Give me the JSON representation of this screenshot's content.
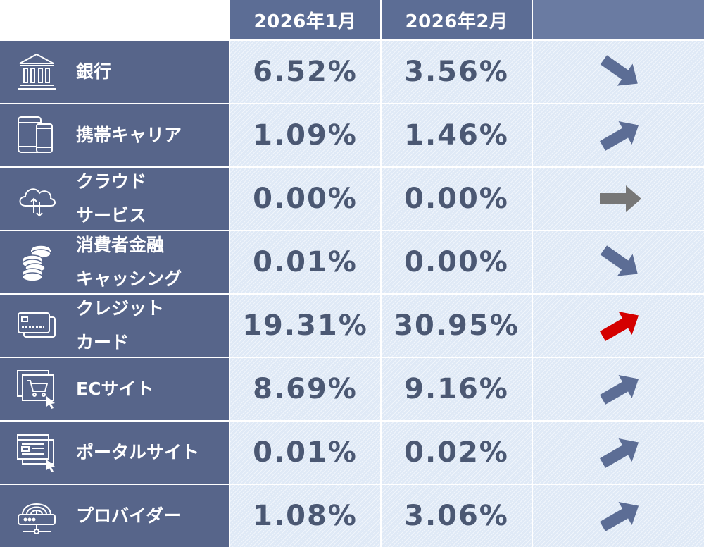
{
  "header": {
    "col1": "2026年1月",
    "col2": "2026年2月",
    "col3": ""
  },
  "colors": {
    "category_bg": "#57658a",
    "header_bg": "#5c6d95",
    "value_bg": "#dfe9f6",
    "value_text": "#4b5873",
    "trend_normal": "#5c6d95",
    "trend_flat": "#777777",
    "trend_highlight": "#d40000"
  },
  "rows": [
    {
      "icon": "bank-icon",
      "label_line1": "銀行",
      "label_line2": "",
      "jan": "6.52%",
      "feb": "3.56%",
      "trend": "down",
      "trend_color": "#5c6d95"
    },
    {
      "icon": "mobile-devices-icon",
      "label_line1": "携帯キャリア",
      "label_line2": "",
      "jan": "1.09%",
      "feb": "1.46%",
      "trend": "up",
      "trend_color": "#5c6d95"
    },
    {
      "icon": "cloud-sync-icon",
      "label_line1": "クラウド",
      "label_line2": "サービス",
      "jan": "0.00%",
      "feb": "0.00%",
      "trend": "flat",
      "trend_color": "#777777"
    },
    {
      "icon": "coin-stack-icon",
      "label_line1": "消費者金融",
      "label_line2": "キャッシング",
      "jan": "0.01%",
      "feb": "0.00%",
      "trend": "down",
      "trend_color": "#5c6d95"
    },
    {
      "icon": "credit-card-icon",
      "label_line1": "クレジット",
      "label_line2": "カード",
      "jan": "19.31%",
      "feb": "30.95%",
      "trend": "up",
      "trend_color": "#d40000"
    },
    {
      "icon": "shopping-cart-icon",
      "label_line1": "ECサイト",
      "label_line2": "",
      "jan": "8.69%",
      "feb": "9.16%",
      "trend": "up",
      "trend_color": "#5c6d95"
    },
    {
      "icon": "portal-site-icon",
      "label_line1": "ポータルサイト",
      "label_line2": "",
      "jan": "0.01%",
      "feb": "0.02%",
      "trend": "up",
      "trend_color": "#5c6d95"
    },
    {
      "icon": "router-icon",
      "label_line1": "プロバイダー",
      "label_line2": "",
      "jan": "1.08%",
      "feb": "3.06%",
      "trend": "up",
      "trend_color": "#5c6d95"
    }
  ]
}
